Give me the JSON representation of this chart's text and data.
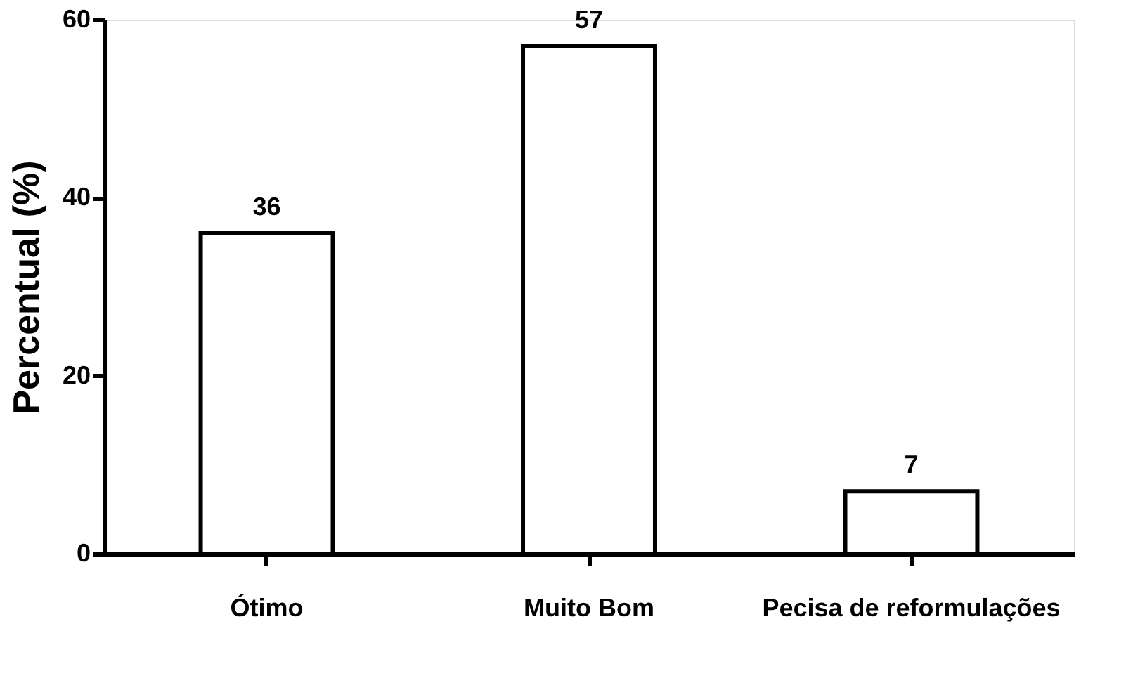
{
  "chart_data": {
    "type": "bar",
    "ylabel": "Percentual (%)",
    "categories": [
      "Ótimo",
      "Muito Bom",
      "Pecisa de reformulações"
    ],
    "values": [
      36,
      57,
      7
    ],
    "color": "#ffffff",
    "ylim": [
      0,
      60
    ],
    "yticks": [
      0,
      20,
      40,
      60
    ],
    "data_labels": true,
    "grid": false
  }
}
